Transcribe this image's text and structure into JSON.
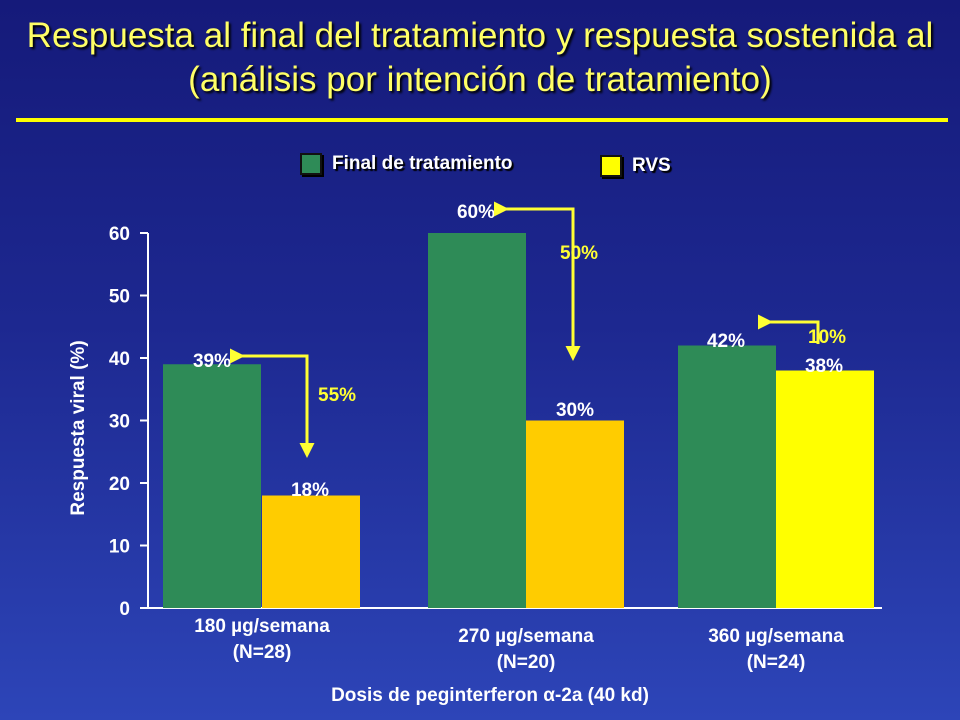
{
  "title": "Respuesta al final del tratamiento y respuesta sostenida al (análisis por intención de tratamiento)",
  "colors": {
    "eot": "#2e8b57",
    "rvs_group1": "#ffcc00",
    "rvs_group2": "#ffcc00",
    "rvs_group3": "#ffff00",
    "arrow": "#ffff33",
    "title": "#ffff66"
  },
  "chart_data": {
    "type": "bar",
    "ylabel": "Respuesta viral (%)",
    "xlabel": "Dosis de peginterferon α-2a (40 kd)",
    "ylim": [
      0,
      60
    ],
    "yticks": [
      0,
      10,
      20,
      30,
      40,
      50,
      60
    ],
    "legend_position": "top",
    "categories": [
      {
        "line1": "180 µg/semana",
        "line2": "(N=28)"
      },
      {
        "line1": "270 µg/semana",
        "line2": "(N=20)"
      },
      {
        "line1": "360 µg/semana",
        "line2": "(N=24)"
      }
    ],
    "series": [
      {
        "name": "Final de tratamiento",
        "values": [
          39,
          60,
          42
        ],
        "labels": [
          "39%",
          "60%",
          "42%"
        ]
      },
      {
        "name": "RVS",
        "values": [
          18,
          30,
          38
        ],
        "labels": [
          "18%",
          "30%",
          "38%"
        ]
      }
    ],
    "annotations": [
      "55%",
      "50%",
      "10%"
    ]
  }
}
